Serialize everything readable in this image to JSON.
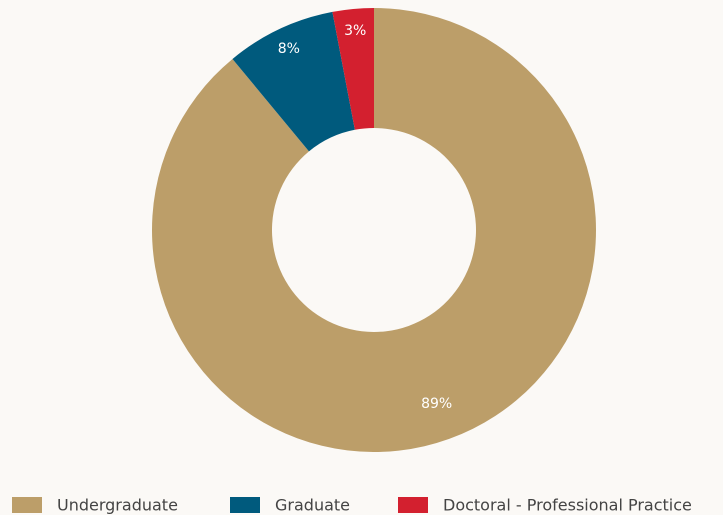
{
  "chart_data": {
    "type": "donut",
    "categories": [
      "Undergraduate",
      "Graduate",
      "Doctoral - Professional Practice"
    ],
    "values": [
      89,
      8,
      3
    ],
    "value_labels": [
      "89%",
      "8%",
      "3%"
    ],
    "colors": [
      "#bc9e69",
      "#005a7d",
      "#d3202f"
    ],
    "legend": "bottom"
  }
}
